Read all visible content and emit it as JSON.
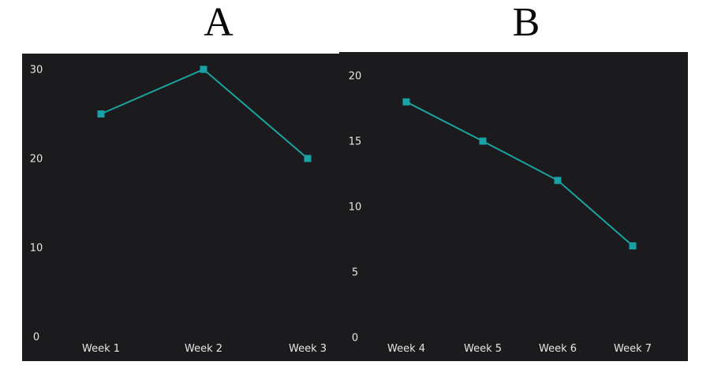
{
  "page": {
    "background": "#ffffff"
  },
  "chart_data": [
    {
      "type": "line",
      "title": "A",
      "categories": [
        "Week 1",
        "Week 2",
        "Week 3"
      ],
      "values": [
        25,
        30,
        20
      ],
      "ytick_labels": [
        "0",
        "10",
        "20",
        "30"
      ],
      "yticks": [
        0,
        10,
        20,
        30
      ],
      "ylim": [
        0,
        31.8
      ],
      "xlabel": "",
      "ylabel": "",
      "grid": false,
      "legend_position": "none",
      "bg_color": "#1b1b1d",
      "line_color": "#1ba49f",
      "marker_color": "#18a2a8",
      "marker_shape": "square",
      "tick_text_color": "#e8e6e2"
    },
    {
      "type": "line",
      "title": "B",
      "categories": [
        "Week 4",
        "Week 5",
        "Week 6",
        "Week 7"
      ],
      "values": [
        18,
        15,
        12,
        7
      ],
      "ytick_labels": [
        "0",
        "5",
        "10",
        "15",
        "20"
      ],
      "yticks": [
        0,
        5,
        10,
        15,
        20
      ],
      "ylim": [
        0,
        21.8
      ],
      "xlabel": "",
      "ylabel": "",
      "grid": false,
      "legend_position": "none",
      "bg_color": "#1b1b1d",
      "line_color": "#1ba49f",
      "marker_color": "#18a2a8",
      "marker_shape": "square",
      "tick_text_color": "#e8e6e2"
    }
  ]
}
